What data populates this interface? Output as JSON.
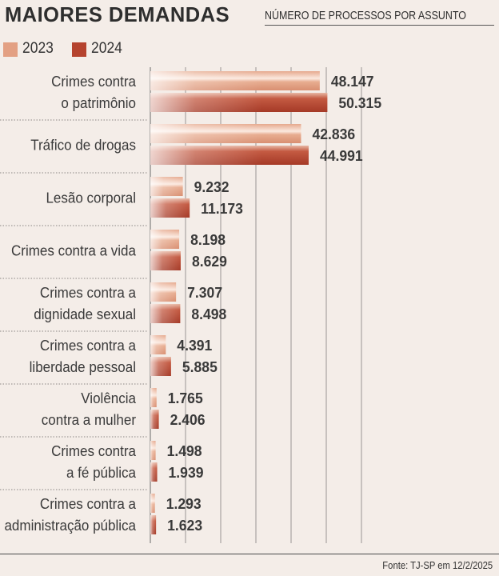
{
  "header": {
    "title": "MAIORES DEMANDAS",
    "subtitle": "NÚMERO DE PROCESSOS POR ASSUNTO"
  },
  "legend": [
    {
      "label": "2023",
      "color": "#e3a083"
    },
    {
      "label": "2024",
      "color": "#b5432e"
    }
  ],
  "footer": {
    "source": "Fonte: TJ-SP em 12/2/2025"
  },
  "chart_data": {
    "type": "bar",
    "orientation": "horizontal",
    "title": "MAIORES DEMANDAS",
    "subtitle": "NÚMERO DE PROCESSOS POR ASSUNTO",
    "xlim": [
      0,
      60000
    ],
    "grid": true,
    "categories": [
      [
        "Crimes contra",
        "o patrimônio"
      ],
      [
        "Tráfico de drogas"
      ],
      [
        "Lesão corporal"
      ],
      [
        "Crimes contra a vida"
      ],
      [
        "Crimes contra a",
        "dignidade sexual"
      ],
      [
        "Crimes contra a",
        "liberdade pessoal"
      ],
      [
        "Violência",
        "contra a mulher"
      ],
      [
        "Crimes contra",
        "a fé pública"
      ],
      [
        "Crimes contra a",
        "administração pública"
      ]
    ],
    "series": [
      {
        "name": "2023",
        "color": "#e3a083",
        "values": [
          48147,
          42836,
          9232,
          8198,
          7307,
          4391,
          1765,
          1498,
          1293
        ],
        "labels": [
          "48.147",
          "42.836",
          "9.232",
          "8.198",
          "7.307",
          "4.391",
          "1.765",
          "1.498",
          "1.293"
        ]
      },
      {
        "name": "2024",
        "color": "#b5432e",
        "values": [
          50315,
          44991,
          11173,
          8629,
          8498,
          5885,
          2406,
          1939,
          1623
        ],
        "labels": [
          "50.315",
          "44.991",
          "11.173",
          "8.629",
          "8.498",
          "5.885",
          "2.406",
          "1.939",
          "1.623"
        ]
      }
    ]
  }
}
